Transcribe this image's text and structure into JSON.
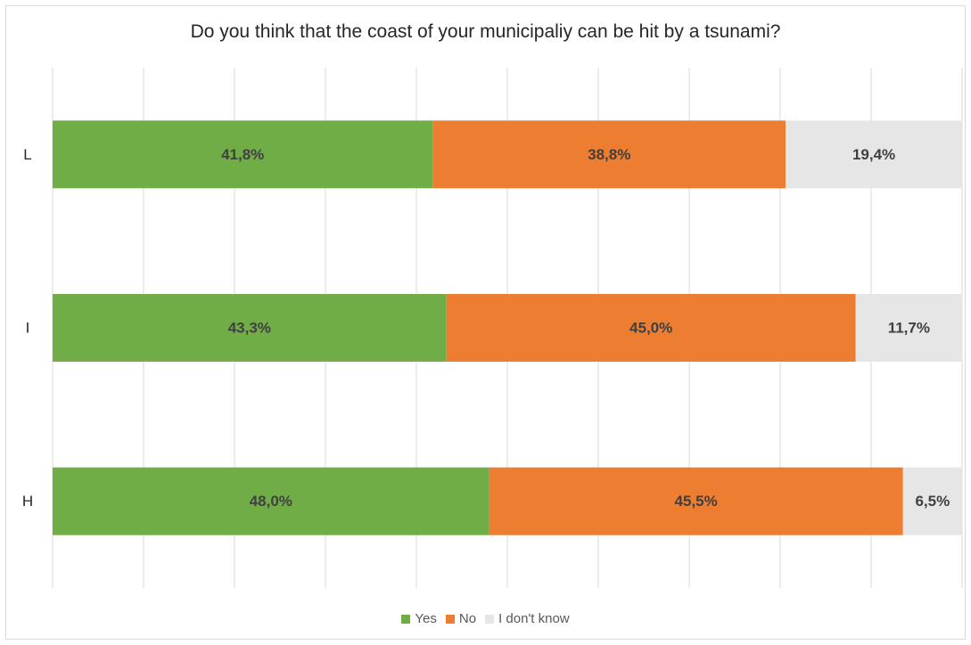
{
  "chart_data": {
    "type": "bar",
    "orientation": "horizontal",
    "stacked": true,
    "title": "Do you think that the coast of your municipaliy can be hit by a tsunami?",
    "categories": [
      "L",
      "I",
      "H"
    ],
    "series": [
      {
        "name": "Yes",
        "color": "#70ad47",
        "values": [
          41.8,
          43.3,
          48.0
        ],
        "labels": [
          "41,8%",
          "43,3%",
          "48,0%"
        ]
      },
      {
        "name": "No",
        "color": "#ed7d31",
        "values": [
          38.8,
          45.0,
          45.5
        ],
        "labels": [
          "38,8%",
          "45,0%",
          "45,5%"
        ]
      },
      {
        "name": "I don't know",
        "color": "#e7e6e6",
        "values": [
          19.4,
          11.7,
          6.5
        ],
        "labels": [
          "19,4%",
          "11,7%",
          "6,5%"
        ]
      }
    ],
    "xlim": [
      0,
      100
    ],
    "grid": true,
    "legend_position": "bottom",
    "xlabel": "",
    "ylabel": ""
  }
}
